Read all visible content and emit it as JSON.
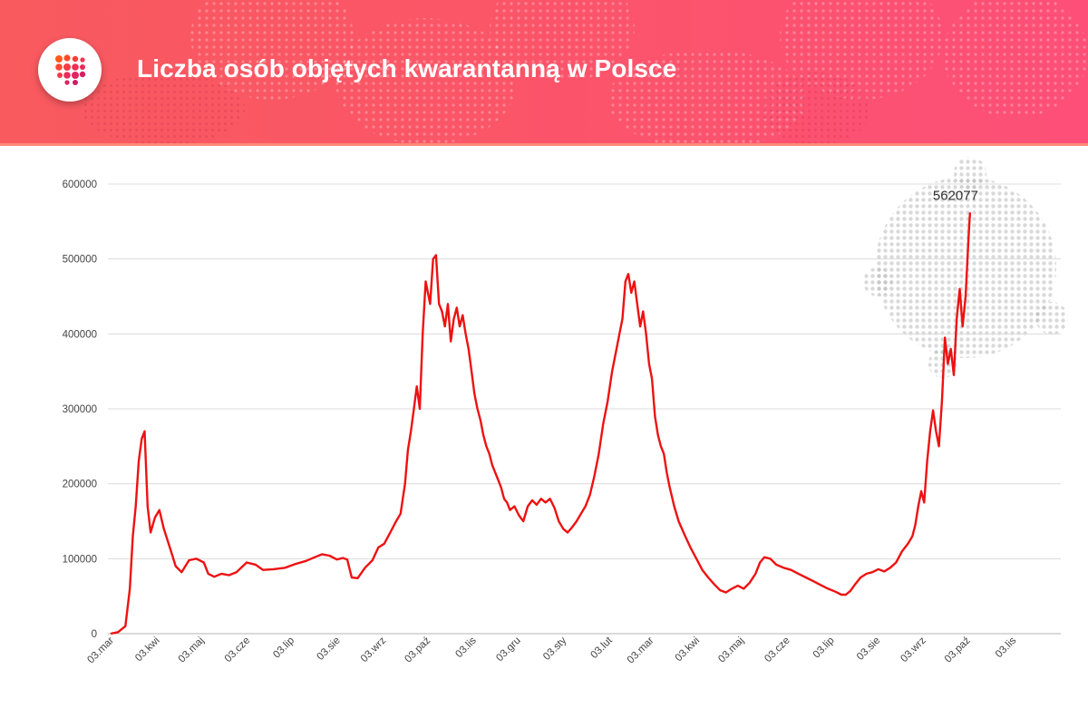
{
  "header": {
    "title": "Liczba osób objętych kwarantanną w Polsce",
    "logo_icon": "dot-grid-logo-icon",
    "background_color": "#fb5568"
  },
  "chart_data": {
    "type": "line",
    "title": "Liczba osób objętych kwarantanną w Polsce",
    "xlabel": "",
    "ylabel": "",
    "ylim": [
      0,
      600000
    ],
    "grid": true,
    "y_ticks": [
      "0",
      "100000",
      "200000",
      "300000",
      "400000",
      "500000",
      "600000"
    ],
    "x_tick_labels": [
      "03.mar",
      "03.kwi",
      "03.maj",
      "03.cze",
      "03.lip",
      "03.sie",
      "03.wrz",
      "03.paź",
      "03.lis",
      "03.gru",
      "03.sty",
      "03.lut",
      "03.mar",
      "03.kwi",
      "03.maj",
      "03.cze",
      "03.lip",
      "03.sie",
      "03.wrz",
      "03.paź",
      "03.lis"
    ],
    "line_color": "#ee1111",
    "peak_annotation": "562077",
    "series": [
      {
        "name": "Liczba osób objętych kwarantanną",
        "unit": "days since 2020-03-03",
        "points": [
          [
            0,
            0
          ],
          [
            5,
            2000
          ],
          [
            10,
            10000
          ],
          [
            13,
            60000
          ],
          [
            15,
            130000
          ],
          [
            17,
            170000
          ],
          [
            19,
            230000
          ],
          [
            21,
            260000
          ],
          [
            23,
            270000
          ],
          [
            25,
            170000
          ],
          [
            27,
            135000
          ],
          [
            30,
            155000
          ],
          [
            33,
            165000
          ],
          [
            36,
            140000
          ],
          [
            40,
            115000
          ],
          [
            44,
            90000
          ],
          [
            48,
            82000
          ],
          [
            53,
            98000
          ],
          [
            58,
            100000
          ],
          [
            63,
            95000
          ],
          [
            66,
            80000
          ],
          [
            70,
            76000
          ],
          [
            75,
            80000
          ],
          [
            80,
            78000
          ],
          [
            85,
            82000
          ],
          [
            92,
            95000
          ],
          [
            98,
            92000
          ],
          [
            103,
            85000
          ],
          [
            110,
            86000
          ],
          [
            118,
            88000
          ],
          [
            125,
            93000
          ],
          [
            132,
            97000
          ],
          [
            138,
            102000
          ],
          [
            143,
            106000
          ],
          [
            148,
            104000
          ],
          [
            153,
            99000
          ],
          [
            157,
            101000
          ],
          [
            160,
            99000
          ],
          [
            163,
            75000
          ],
          [
            167,
            74000
          ],
          [
            172,
            88000
          ],
          [
            177,
            98000
          ],
          [
            181,
            115000
          ],
          [
            185,
            120000
          ],
          [
            189,
            135000
          ],
          [
            193,
            150000
          ],
          [
            196,
            160000
          ],
          [
            199,
            200000
          ],
          [
            201,
            245000
          ],
          [
            203,
            270000
          ],
          [
            205,
            300000
          ],
          [
            207,
            330000
          ],
          [
            209,
            300000
          ],
          [
            211,
            400000
          ],
          [
            213,
            470000
          ],
          [
            216,
            440000
          ],
          [
            218,
            500000
          ],
          [
            220,
            505000
          ],
          [
            222,
            440000
          ],
          [
            224,
            430000
          ],
          [
            226,
            410000
          ],
          [
            228,
            440000
          ],
          [
            230,
            390000
          ],
          [
            232,
            420000
          ],
          [
            234,
            435000
          ],
          [
            236,
            410000
          ],
          [
            238,
            425000
          ],
          [
            240,
            400000
          ],
          [
            242,
            380000
          ],
          [
            244,
            350000
          ],
          [
            246,
            320000
          ],
          [
            248,
            300000
          ],
          [
            250,
            285000
          ],
          [
            252,
            265000
          ],
          [
            254,
            250000
          ],
          [
            256,
            240000
          ],
          [
            258,
            225000
          ],
          [
            260,
            215000
          ],
          [
            262,
            205000
          ],
          [
            264,
            195000
          ],
          [
            266,
            180000
          ],
          [
            268,
            175000
          ],
          [
            270,
            165000
          ],
          [
            273,
            170000
          ],
          [
            276,
            158000
          ],
          [
            279,
            150000
          ],
          [
            282,
            170000
          ],
          [
            285,
            178000
          ],
          [
            288,
            172000
          ],
          [
            291,
            180000
          ],
          [
            294,
            175000
          ],
          [
            297,
            180000
          ],
          [
            300,
            168000
          ],
          [
            303,
            150000
          ],
          [
            306,
            140000
          ],
          [
            309,
            135000
          ],
          [
            312,
            142000
          ],
          [
            315,
            150000
          ],
          [
            318,
            160000
          ],
          [
            321,
            170000
          ],
          [
            324,
            185000
          ],
          [
            327,
            210000
          ],
          [
            330,
            240000
          ],
          [
            333,
            280000
          ],
          [
            336,
            310000
          ],
          [
            339,
            350000
          ],
          [
            342,
            380000
          ],
          [
            344,
            400000
          ],
          [
            346,
            420000
          ],
          [
            348,
            470000
          ],
          [
            350,
            480000
          ],
          [
            352,
            455000
          ],
          [
            354,
            470000
          ],
          [
            356,
            440000
          ],
          [
            358,
            410000
          ],
          [
            360,
            430000
          ],
          [
            362,
            400000
          ],
          [
            364,
            360000
          ],
          [
            366,
            340000
          ],
          [
            368,
            290000
          ],
          [
            370,
            265000
          ],
          [
            372,
            250000
          ],
          [
            374,
            240000
          ],
          [
            376,
            215000
          ],
          [
            378,
            195000
          ],
          [
            381,
            170000
          ],
          [
            384,
            150000
          ],
          [
            388,
            132000
          ],
          [
            392,
            115000
          ],
          [
            396,
            100000
          ],
          [
            400,
            85000
          ],
          [
            404,
            75000
          ],
          [
            408,
            66000
          ],
          [
            412,
            58000
          ],
          [
            416,
            55000
          ],
          [
            420,
            60000
          ],
          [
            424,
            64000
          ],
          [
            428,
            60000
          ],
          [
            432,
            68000
          ],
          [
            436,
            80000
          ],
          [
            439,
            95000
          ],
          [
            442,
            102000
          ],
          [
            446,
            100000
          ],
          [
            450,
            92000
          ],
          [
            455,
            88000
          ],
          [
            460,
            85000
          ],
          [
            465,
            80000
          ],
          [
            470,
            75000
          ],
          [
            475,
            70000
          ],
          [
            480,
            65000
          ],
          [
            485,
            60000
          ],
          [
            490,
            56000
          ],
          [
            494,
            52000
          ],
          [
            497,
            52000
          ],
          [
            500,
            57000
          ],
          [
            503,
            65000
          ],
          [
            507,
            75000
          ],
          [
            511,
            80000
          ],
          [
            515,
            82000
          ],
          [
            519,
            86000
          ],
          [
            523,
            83000
          ],
          [
            527,
            88000
          ],
          [
            531,
            95000
          ],
          [
            535,
            110000
          ],
          [
            539,
            120000
          ],
          [
            542,
            130000
          ],
          [
            544,
            145000
          ],
          [
            546,
            170000
          ],
          [
            548,
            190000
          ],
          [
            550,
            175000
          ],
          [
            552,
            230000
          ],
          [
            554,
            270000
          ],
          [
            556,
            298000
          ],
          [
            558,
            270000
          ],
          [
            560,
            250000
          ],
          [
            562,
            310000
          ],
          [
            564,
            395000
          ],
          [
            566,
            360000
          ],
          [
            568,
            380000
          ],
          [
            570,
            345000
          ],
          [
            572,
            420000
          ],
          [
            574,
            460000
          ],
          [
            576,
            410000
          ],
          [
            578,
            450000
          ],
          [
            580,
            530000
          ],
          [
            581,
            562077
          ]
        ]
      }
    ]
  }
}
